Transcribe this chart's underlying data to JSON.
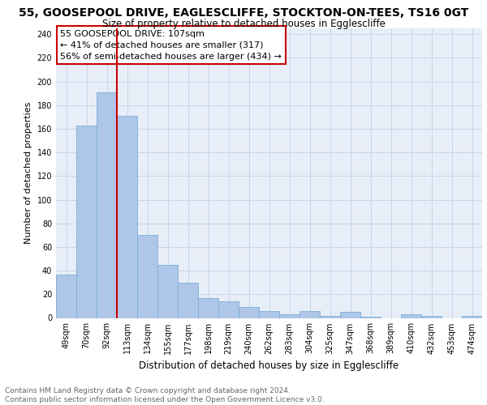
{
  "title": "55, GOOSEPOOL DRIVE, EAGLESCLIFFE, STOCKTON-ON-TEES, TS16 0GT",
  "subtitle": "Size of property relative to detached houses in Egglescliffe",
  "xlabel": "Distribution of detached houses by size in Egglescliffe",
  "ylabel": "Number of detached properties",
  "categories": [
    "49sqm",
    "70sqm",
    "92sqm",
    "113sqm",
    "134sqm",
    "155sqm",
    "177sqm",
    "198sqm",
    "219sqm",
    "240sqm",
    "262sqm",
    "283sqm",
    "304sqm",
    "325sqm",
    "347sqm",
    "368sqm",
    "389sqm",
    "410sqm",
    "432sqm",
    "453sqm",
    "474sqm"
  ],
  "values": [
    37,
    163,
    191,
    171,
    70,
    45,
    30,
    17,
    14,
    9,
    6,
    3,
    6,
    2,
    5,
    1,
    0,
    3,
    2,
    0,
    2
  ],
  "bar_color": "#aec6e8",
  "bar_edge_color": "#7aafd4",
  "bar_linewidth": 0.6,
  "vline_color": "#cc0000",
  "annotation_lines": [
    "55 GOOSEPOOL DRIVE: 107sqm",
    "← 41% of detached houses are smaller (317)",
    "56% of semi-detached houses are larger (434) →"
  ],
  "annotation_fontsize": 8,
  "grid_color": "#c8d4e8",
  "background_color": "#e8eef8",
  "ylim": [
    0,
    245
  ],
  "yticks": [
    0,
    20,
    40,
    60,
    80,
    100,
    120,
    140,
    160,
    180,
    200,
    220,
    240
  ],
  "footer_line1": "Contains HM Land Registry data © Crown copyright and database right 2024.",
  "footer_line2": "Contains public sector information licensed under the Open Government Licence v3.0.",
  "title_fontsize": 10,
  "subtitle_fontsize": 8.5,
  "xlabel_fontsize": 8.5,
  "ylabel_fontsize": 8,
  "tick_fontsize": 7,
  "footer_fontsize": 6.5
}
